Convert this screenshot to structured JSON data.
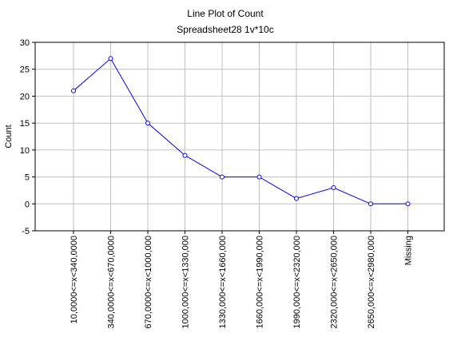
{
  "chart_data": {
    "type": "line",
    "title": "Line Plot of Count",
    "subtitle": "Spreadsheet28 1v*10c",
    "xlabel": "",
    "ylabel": "Count",
    "categories": [
      "10,0000<=x<340,0000",
      "340,0000<=x<670,0000",
      "670,0000<=x<1000,000",
      "1000,000<=x<1330,000",
      "1330,000<=x<1660,000",
      "1660,000<=x<1990,000",
      "1990,000<=x<2320,000",
      "2320,000<=x<2650,000",
      "2650,000<=x<2980,000",
      "Missing"
    ],
    "values": [
      21,
      27,
      15,
      9,
      5,
      5,
      1,
      3,
      0,
      0
    ],
    "ylim": [
      -5,
      30
    ],
    "yticks": [
      -5,
      0,
      5,
      10,
      15,
      20,
      25,
      30
    ],
    "grid": true,
    "line_color": "#0000ff",
    "grid_color": "#c0c0c0"
  }
}
